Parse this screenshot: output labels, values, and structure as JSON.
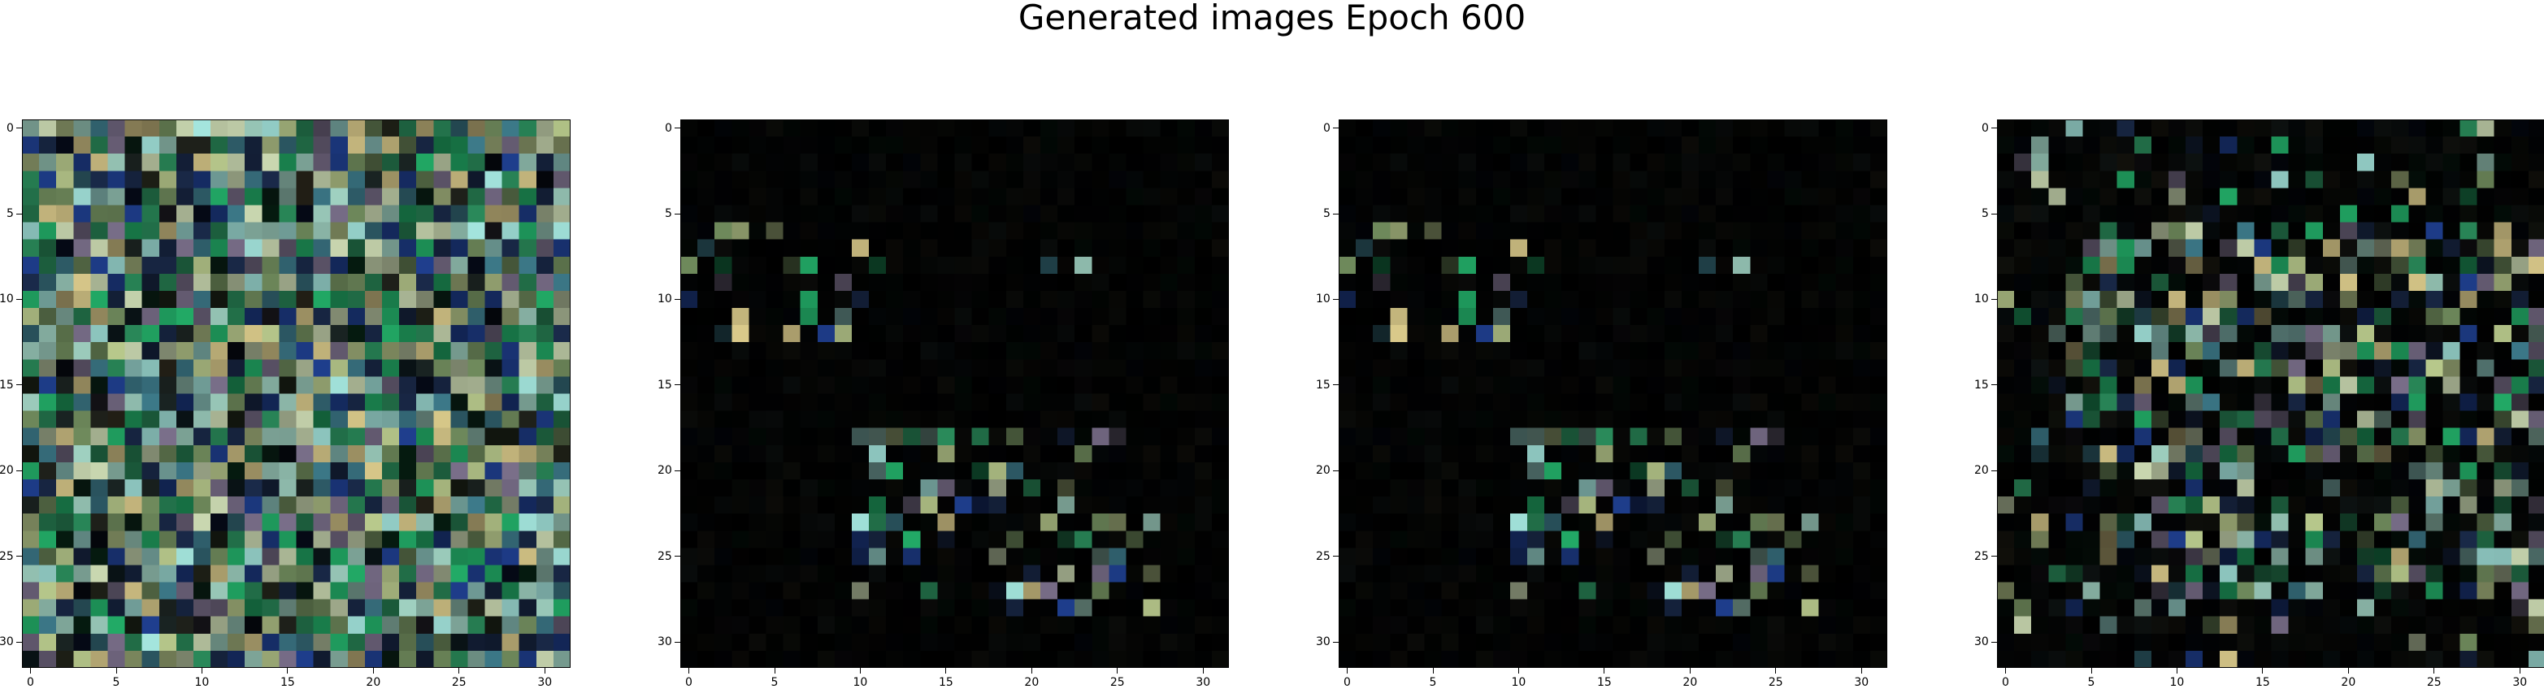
{
  "figure": {
    "title": "Generated images Epoch 600"
  },
  "chart_data": [
    {
      "type": "heatmap",
      "description_kind": "rgb-image",
      "grid_size": [
        32,
        32
      ],
      "xlim": [
        -0.5,
        31.5
      ],
      "ylim": [
        31.5,
        -0.5
      ],
      "xticks": [
        0,
        5,
        10,
        15,
        20,
        25,
        30
      ],
      "yticks": [
        0,
        5,
        10,
        15,
        20,
        25,
        30
      ],
      "xtick_labels": [
        "0",
        "5",
        "10",
        "15",
        "20",
        "25",
        "30"
      ],
      "ytick_labels": [
        "0",
        "5",
        "10",
        "15",
        "20",
        "25",
        "30"
      ],
      "grid": false,
      "content": "dense",
      "seed": 11
    },
    {
      "type": "heatmap",
      "description_kind": "rgb-image",
      "grid_size": [
        32,
        32
      ],
      "xlim": [
        -0.5,
        31.5
      ],
      "ylim": [
        31.5,
        -0.5
      ],
      "xticks": [
        0,
        5,
        10,
        15,
        20,
        25,
        30
      ],
      "yticks": [
        0,
        5,
        10,
        15,
        20,
        25,
        30
      ],
      "xtick_labels": [
        "0",
        "5",
        "10",
        "15",
        "20",
        "25",
        "30"
      ],
      "ytick_labels": [
        "0",
        "5",
        "10",
        "15",
        "20",
        "25",
        "30"
      ],
      "grid": false,
      "content": "sparse",
      "seed": 42
    },
    {
      "type": "heatmap",
      "description_kind": "rgb-image",
      "grid_size": [
        32,
        32
      ],
      "xlim": [
        -0.5,
        31.5
      ],
      "ylim": [
        31.5,
        -0.5
      ],
      "xticks": [
        0,
        5,
        10,
        15,
        20,
        25,
        30
      ],
      "yticks": [
        0,
        5,
        10,
        15,
        20,
        25,
        30
      ],
      "xtick_labels": [
        "0",
        "5",
        "10",
        "15",
        "20",
        "25",
        "30"
      ],
      "ytick_labels": [
        "0",
        "5",
        "10",
        "15",
        "20",
        "25",
        "30"
      ],
      "grid": false,
      "content": "sparse",
      "seed": 42
    },
    {
      "type": "heatmap",
      "description_kind": "rgb-image",
      "grid_size": [
        32,
        32
      ],
      "xlim": [
        -0.5,
        31.5
      ],
      "ylim": [
        31.5,
        -0.5
      ],
      "xticks": [
        0,
        5,
        10,
        15,
        20,
        25,
        30
      ],
      "yticks": [
        0,
        5,
        10,
        15,
        20,
        25,
        30
      ],
      "xtick_labels": [
        "0",
        "5",
        "10",
        "15",
        "20",
        "25",
        "30"
      ],
      "ytick_labels": [
        "0",
        "5",
        "10",
        "15",
        "20",
        "25",
        "30"
      ],
      "grid": false,
      "content": "medium",
      "seed": 77
    }
  ],
  "colors": {
    "background": "#000000",
    "palette": [
      "#c9d7b0",
      "#b8c98c",
      "#9fd0c0",
      "#6f8a5c",
      "#3d7a8a",
      "#1f3f8f",
      "#2a8a5a",
      "#7a6f8a",
      "#d9c98a",
      "#a6e8e0",
      "#1a2a4a",
      "#22aa66"
    ]
  }
}
